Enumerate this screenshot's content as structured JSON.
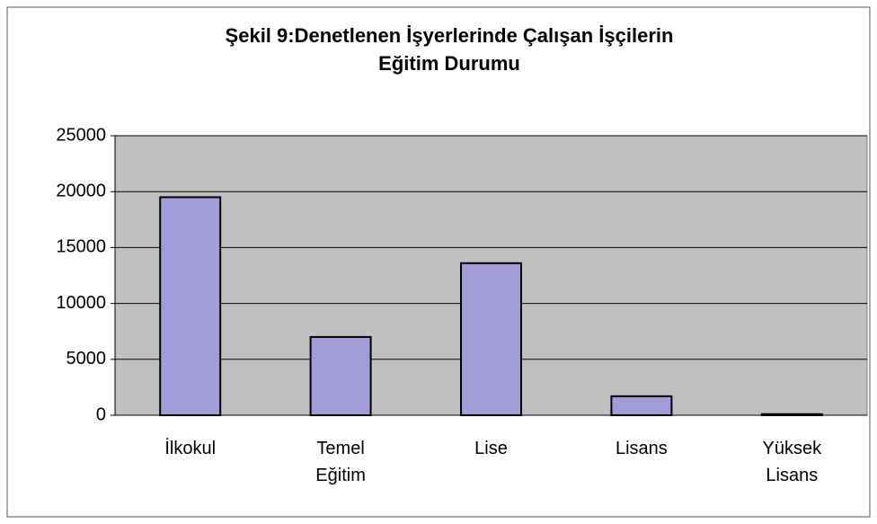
{
  "chart_data": {
    "type": "bar",
    "title": "Şekil 9:Denetlenen İşyerlerinde Çalışan İşçilerin Eğitim Durumu",
    "categories": [
      "İlkokul",
      "Temel Eğitim",
      "Lise",
      "Lisans",
      "Yüksek Lisans"
    ],
    "values": [
      19500,
      7000,
      13600,
      1700,
      100
    ],
    "color": "#a29dd6",
    "ylim": [
      0,
      25000
    ],
    "yticks": [
      0,
      5000,
      10000,
      15000,
      20000,
      25000
    ],
    "grid": true
  }
}
